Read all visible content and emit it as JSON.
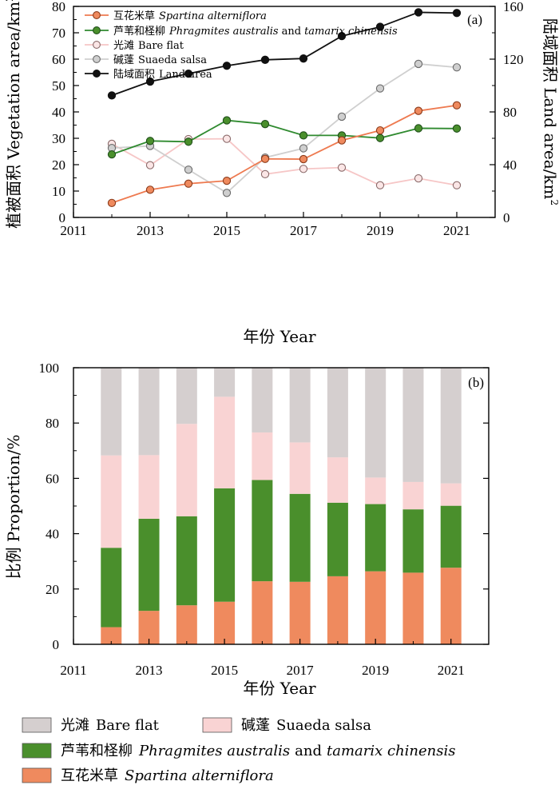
{
  "colors": {
    "spartina": "#ef8a5e",
    "phragmites": "#4a8f2c",
    "bare": "#d5cfcf",
    "suaeda": "#f9d3d3",
    "bare_line": "#f6c6c6",
    "suaeda_line": "#cfcfcf",
    "land": "#111111",
    "spartina_line": "#ee7a50",
    "phragmites_line": "#2f8a2f"
  },
  "chart_data": [
    {
      "type": "line",
      "panel_label": "(a)",
      "xlabel": "年份 Year",
      "ylabel": "植被面积 Vegetation area/km",
      "ylabel_sup": "2",
      "ylabel_right": "陆域面积 Land area/km",
      "ylabel_right_sup": "2",
      "xlim": [
        2011,
        2022
      ],
      "ylim": [
        0,
        80
      ],
      "ylim_right": [
        0,
        160
      ],
      "x_ticks": [
        "2011",
        "2013",
        "2015",
        "2017",
        "2019",
        "2021"
      ],
      "y_ticks": [
        "0",
        "10",
        "20",
        "30",
        "40",
        "50",
        "60",
        "70",
        "80"
      ],
      "y_ticks_right": [
        "0",
        "40",
        "80",
        "120",
        "160"
      ],
      "x": [
        2012,
        2013,
        2014,
        2015,
        2016,
        2017,
        2018,
        2019,
        2020,
        2021
      ],
      "series": [
        {
          "name_cn": "互花米草",
          "name_latin": "Spartina alterniflora",
          "axis": "left",
          "values": [
            5.5,
            10.5,
            12.8,
            13.9,
            22.2,
            22.1,
            29.2,
            33.0,
            40.4,
            42.5
          ]
        },
        {
          "name_cn": "芦苇和柽柳",
          "name_latin": "Phragmites australis",
          "name_and": "and",
          "name_latin2": "tamarix chinensis",
          "axis": "left",
          "values": [
            23.9,
            29.0,
            28.7,
            36.8,
            35.4,
            31.1,
            31.1,
            30.1,
            33.8,
            33.7
          ]
        },
        {
          "name_cn": "光滩",
          "name_en": "Bare flat",
          "axis": "left",
          "values": [
            27.9,
            19.8,
            29.7,
            29.8,
            16.4,
            18.4,
            18.9,
            12.2,
            14.8,
            12.2
          ]
        },
        {
          "name_cn": "碱蓬",
          "name_en": "Suaeda salsa",
          "axis": "left",
          "values": [
            26.3,
            27.1,
            18.1,
            9.3,
            22.7,
            26.2,
            38.2,
            48.9,
            58.2,
            56.9
          ]
        },
        {
          "name_cn": "陆域面积",
          "name_en": "Land area",
          "axis": "right",
          "values": [
            92.5,
            103,
            109,
            115,
            119.5,
            120.5,
            137.5,
            144.5,
            155.5,
            155
          ]
        }
      ]
    },
    {
      "type": "bar",
      "stacked": true,
      "panel_label": "(b)",
      "xlabel": "年份 Year",
      "ylabel": "比例 Proportion/%",
      "xlim": [
        2011,
        2022
      ],
      "ylim": [
        0,
        100
      ],
      "x_ticks": [
        "2011",
        "2013",
        "2015",
        "2017",
        "2019",
        "2021"
      ],
      "y_ticks": [
        "0",
        "20",
        "40",
        "60",
        "80",
        "100"
      ],
      "x": [
        2012,
        2013,
        2014,
        2015,
        2016,
        2017,
        2018,
        2019,
        2020,
        2021
      ],
      "series": [
        {
          "name_cn": "互花米草",
          "name_latin": "Spartina alterniflora",
          "values": [
            6.2,
            12.1,
            14.1,
            15.4,
            22.8,
            22.6,
            24.6,
            26.4,
            25.9,
            27.7
          ]
        },
        {
          "name_cn": "芦苇和柽柳",
          "name_latin": "Phragmites australis",
          "name_and": "and",
          "name_latin2": "tamarix chinensis",
          "values": [
            28.7,
            33.3,
            32.2,
            41.0,
            36.6,
            31.8,
            26.6,
            24.3,
            22.9,
            22.4
          ]
        },
        {
          "name_cn": "碱蓬",
          "name_en": "Suaeda salsa",
          "values": [
            33.4,
            23.0,
            33.4,
            33.1,
            17.2,
            18.6,
            16.4,
            9.6,
            9.9,
            8.1
          ]
        },
        {
          "name_cn": "光滩",
          "name_en": "Bare flat",
          "values": [
            31.7,
            31.6,
            20.3,
            10.5,
            23.4,
            27.0,
            32.4,
            39.7,
            41.3,
            41.8
          ]
        }
      ]
    }
  ]
}
